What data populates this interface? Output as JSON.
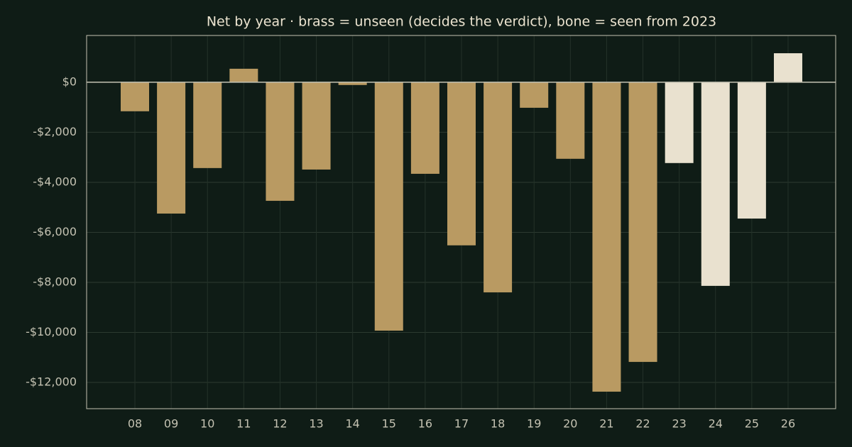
{
  "chart_data": {
    "type": "bar",
    "title": "Net by year  ·  brass = unseen (decides the verdict), bone = seen from 2023",
    "categories": [
      "08",
      "09",
      "10",
      "11",
      "12",
      "13",
      "14",
      "15",
      "16",
      "17",
      "18",
      "19",
      "20",
      "21",
      "22",
      "23",
      "24",
      "25",
      "26"
    ],
    "values": [
      -1160,
      -5250,
      -3430,
      540,
      -4740,
      -3490,
      -110,
      -9930,
      -3660,
      -6520,
      -8400,
      -1020,
      -3060,
      -12370,
      -11180,
      -3230,
      -8140,
      -5450,
      1160
    ],
    "colors": [
      "#b99a62",
      "#b99a62",
      "#b99a62",
      "#b99a62",
      "#b99a62",
      "#b99a62",
      "#b99a62",
      "#b99a62",
      "#b99a62",
      "#b99a62",
      "#b99a62",
      "#b99a62",
      "#b99a62",
      "#b99a62",
      "#b99a62",
      "#e9e1cf",
      "#e9e1cf",
      "#e9e1cf",
      "#e9e1cf"
    ],
    "ylim": [
      -13050,
      1870
    ],
    "yticks": [
      {
        "value": 0,
        "label": "$0"
      },
      {
        "value": -2000,
        "label": "-$2,000"
      },
      {
        "value": -4000,
        "label": "-$4,000"
      },
      {
        "value": -6000,
        "label": "-$6,000"
      },
      {
        "value": -8000,
        "label": "-$8,000"
      },
      {
        "value": -10000,
        "label": "-$10,000"
      },
      {
        "value": -12000,
        "label": "-$12,000"
      }
    ],
    "grid": true
  }
}
